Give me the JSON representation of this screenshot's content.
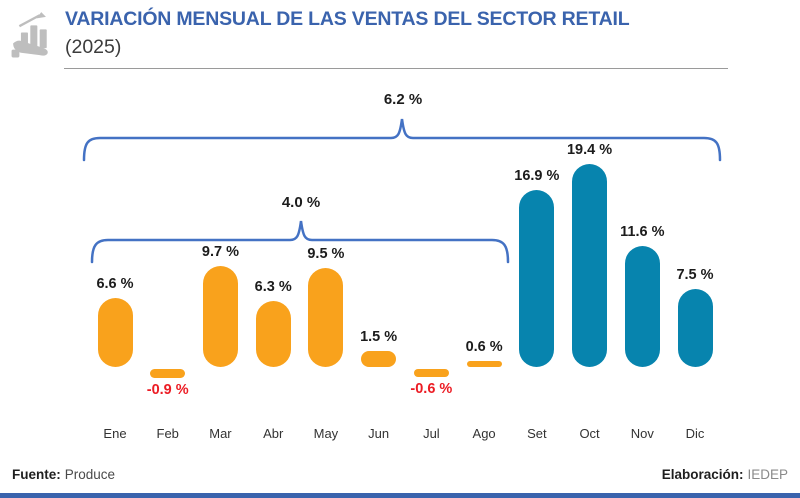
{
  "header": {
    "title": "VARIACIÓN MENSUAL DE LAS VENTAS DEL SECTOR RETAIL",
    "subtitle": "(2025)",
    "icon": "hand-holding-growth-chart-icon"
  },
  "chart_data": {
    "type": "bar",
    "title": "Variación mensual de las ventas del sector retail (2025)",
    "categories": [
      "Ene",
      "Feb",
      "Mar",
      "Abr",
      "May",
      "Jun",
      "Jul",
      "Ago",
      "Set",
      "Oct",
      "Nov",
      "Dic"
    ],
    "values": [
      6.6,
      -0.9,
      9.7,
      6.3,
      9.5,
      1.5,
      -0.6,
      0.6,
      16.9,
      19.4,
      11.6,
      7.5
    ],
    "value_labels": [
      "6.6 %",
      "-0.9 %",
      "9.7 %",
      "6.3 %",
      "9.5 %",
      "1.5 %",
      "-0.6 %",
      "0.6 %",
      "16.9 %",
      "19.4 %",
      "11.6 %",
      "7.5 %"
    ],
    "bar_colors": [
      "#f9a21c",
      "#f9a21c",
      "#f9a21c",
      "#f9a21c",
      "#f9a21c",
      "#f9a21c",
      "#f9a21c",
      "#f9a21c",
      "#0784ae",
      "#0784ae",
      "#0784ae",
      "#0784ae"
    ],
    "unit": "%",
    "grid": false,
    "legend": "none",
    "ylim": [
      -1,
      20
    ],
    "negative_label_color": "#ec1c24",
    "positive_label_color": "#1c1c1c",
    "brackets": [
      {
        "label": "6.2 %",
        "from": "Ene",
        "to": "Dic"
      },
      {
        "label": "4.0 %",
        "from": "Ene",
        "to": "Ago"
      }
    ]
  },
  "footer": {
    "source_label": "Fuente:",
    "source_value": "Produce",
    "elaboration_label": "Elaboración:",
    "elaboration_value": "IEDEP"
  },
  "colors": {
    "orange": "#f9a21c",
    "teal": "#0784ae",
    "bracket_blue": "#4472c4",
    "title_blue": "#3a63ad",
    "negative_red": "#ec1c24",
    "icon_gray": "#bebebe"
  }
}
